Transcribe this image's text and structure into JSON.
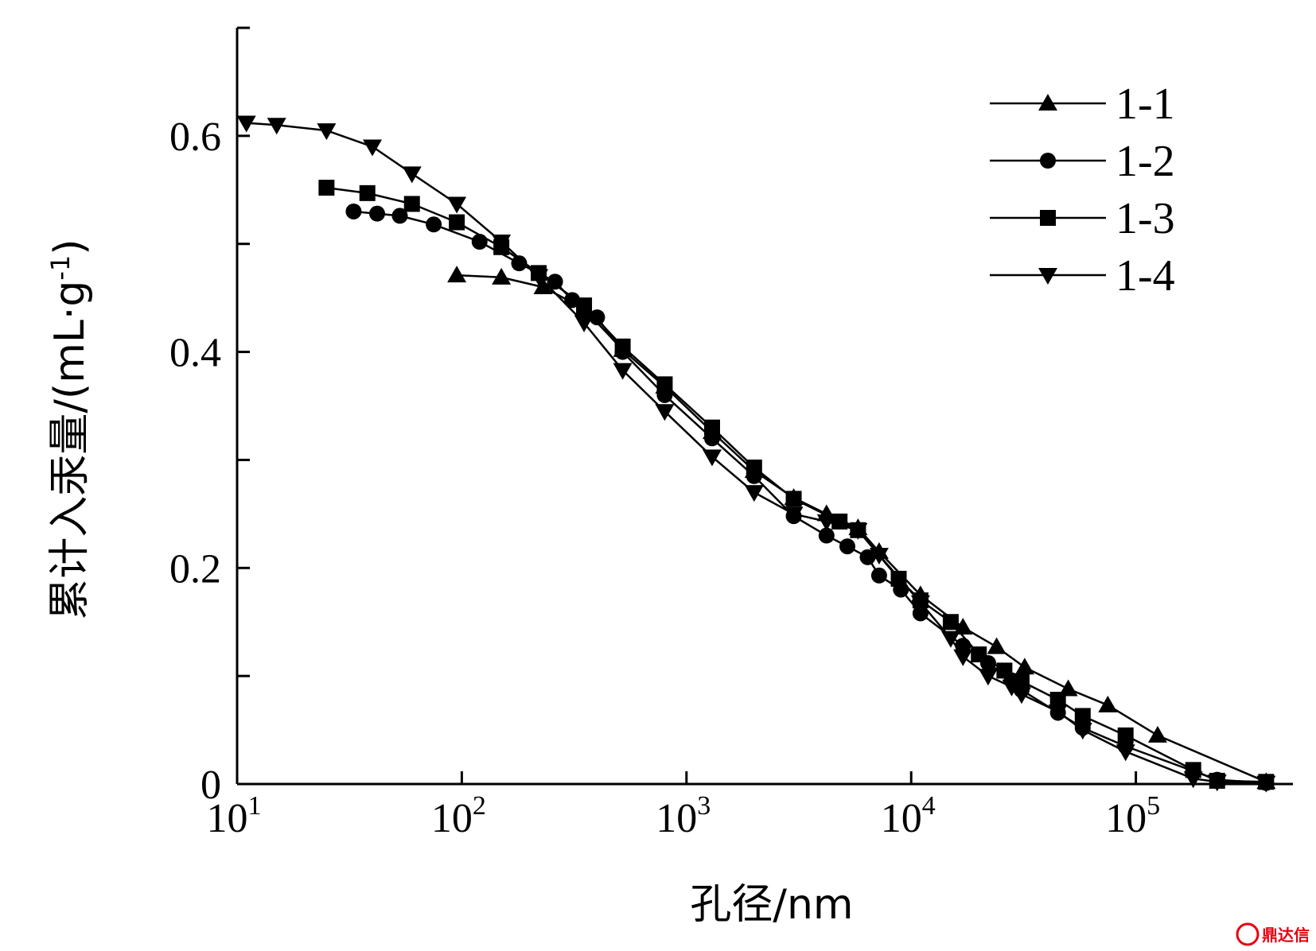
{
  "chart_data": {
    "type": "line",
    "xlabel": "孔径/nm",
    "ylabel": "累计入汞量/(mL·g",
    "ylabel_sup": "-1",
    "ylabel_close": ")",
    "x_scale": "log",
    "xlim": [
      10,
      500000
    ],
    "ylim": [
      0,
      0.7
    ],
    "x_ticks": [
      {
        "value": 10,
        "base": "10",
        "exp": "1"
      },
      {
        "value": 100,
        "base": "10",
        "exp": "2"
      },
      {
        "value": 1000,
        "base": "10",
        "exp": "3"
      },
      {
        "value": 10000,
        "base": "10",
        "exp": "4"
      },
      {
        "value": 100000,
        "base": "10",
        "exp": "5"
      }
    ],
    "y_major_ticks": [
      {
        "value": 0,
        "label": "0"
      },
      {
        "value": 0.2,
        "label": "0.2"
      },
      {
        "value": 0.4,
        "label": "0.4"
      },
      {
        "value": 0.6,
        "label": "0.6"
      }
    ],
    "y_minor_ticks": [
      0.1,
      0.3,
      0.5,
      0.7
    ],
    "grid": false,
    "legend_position": "top-right",
    "series": [
      {
        "name": "1-1",
        "marker": "triangle-up",
        "x": [
          95,
          150,
          230,
          350,
          520,
          800,
          1300,
          2000,
          3000,
          4200,
          5800,
          7200,
          11000,
          17000,
          24000,
          32000,
          50000,
          75000,
          125000,
          380000
        ],
        "y": [
          0.471,
          0.469,
          0.46,
          0.44,
          0.402,
          0.368,
          0.326,
          0.29,
          0.265,
          0.25,
          0.237,
          0.215,
          0.175,
          0.145,
          0.127,
          0.108,
          0.088,
          0.073,
          0.045,
          0.002
        ]
      },
      {
        "name": "1-2",
        "marker": "circle",
        "x": [
          33,
          42,
          53,
          75,
          120,
          180,
          260,
          310,
          400,
          520,
          800,
          1300,
          2000,
          3000,
          4200,
          5200,
          6400,
          7200,
          9000,
          11000,
          17000,
          22000,
          28000,
          31000,
          45000,
          58000,
          90000,
          180000,
          230000,
          380000
        ],
        "y": [
          0.53,
          0.528,
          0.526,
          0.518,
          0.502,
          0.482,
          0.465,
          0.448,
          0.432,
          0.4,
          0.36,
          0.32,
          0.285,
          0.248,
          0.23,
          0.22,
          0.21,
          0.193,
          0.18,
          0.158,
          0.128,
          0.112,
          0.096,
          0.087,
          0.066,
          0.052,
          0.035,
          0.012,
          0.004,
          0.001
        ]
      },
      {
        "name": "1-3",
        "marker": "square",
        "x": [
          25,
          38,
          60,
          95,
          150,
          220,
          350,
          520,
          800,
          1300,
          2000,
          3000,
          4800,
          5800,
          8800,
          11000,
          15000,
          20000,
          26000,
          31000,
          45000,
          58000,
          90000,
          180000,
          230000,
          380000
        ],
        "y": [
          0.552,
          0.547,
          0.537,
          0.52,
          0.497,
          0.473,
          0.443,
          0.405,
          0.37,
          0.33,
          0.293,
          0.264,
          0.243,
          0.235,
          0.19,
          0.17,
          0.15,
          0.12,
          0.105,
          0.095,
          0.078,
          0.063,
          0.045,
          0.013,
          0.003,
          0.002
        ]
      },
      {
        "name": "1-4",
        "marker": "triangle-down",
        "x": [
          11,
          15,
          25,
          40,
          60,
          95,
          150,
          220,
          350,
          520,
          800,
          1300,
          2000,
          3000,
          4200,
          5800,
          7200,
          11000,
          15000,
          17000,
          22000,
          28000,
          31000,
          45000,
          58000,
          90000,
          180000,
          230000,
          380000
        ],
        "y": [
          0.612,
          0.61,
          0.605,
          0.59,
          0.565,
          0.537,
          0.502,
          0.47,
          0.427,
          0.383,
          0.345,
          0.303,
          0.27,
          0.25,
          0.243,
          0.235,
          0.212,
          0.168,
          0.135,
          0.118,
          0.1,
          0.09,
          0.083,
          0.067,
          0.05,
          0.03,
          0.005,
          0.002,
          0.001
        ]
      }
    ]
  },
  "watermark": {
    "text": "鼎达信",
    "color": "#e60012"
  }
}
